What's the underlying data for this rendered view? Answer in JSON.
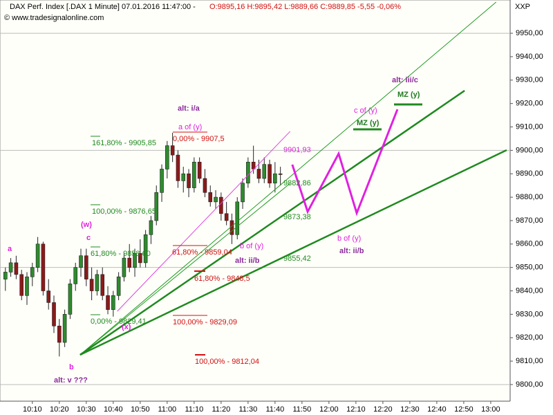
{
  "chart_data": {
    "type": "candlestick",
    "title": "DAX Perf. Index [.DAX  1 Minute] 07.01.2016 11:47:00 -",
    "quote": "O:9895,16 H:9895,42 L:9889,66 C:9889,85 -5,55 -0,06%",
    "source": "© www.tradesignalonline.com",
    "axis_label": "XXP",
    "up_color": "#2e8b2e",
    "down_color": "#8b1a1a",
    "xlim": [
      598,
      787.2
    ],
    "ylim": [
      9792.9,
      9964.2
    ],
    "xticks": [
      {
        "value": 610,
        "label": "10:10"
      },
      {
        "value": 620,
        "label": "10:20"
      },
      {
        "value": 630,
        "label": "10:30"
      },
      {
        "value": 640,
        "label": "10:40"
      },
      {
        "value": 650,
        "label": "10:50"
      },
      {
        "value": 660,
        "label": "11:00"
      },
      {
        "value": 670,
        "label": "11:10"
      },
      {
        "value": 680,
        "label": "11:20"
      },
      {
        "value": 690,
        "label": "11:30"
      },
      {
        "value": 700,
        "label": "11:40"
      },
      {
        "value": 710,
        "label": "11:50"
      },
      {
        "value": 720,
        "label": "12:00"
      },
      {
        "value": 730,
        "label": "12:10"
      },
      {
        "value": 740,
        "label": "12:20"
      },
      {
        "value": 750,
        "label": "12:30"
      },
      {
        "value": 760,
        "label": "12:40"
      },
      {
        "value": 770,
        "label": "12:50"
      },
      {
        "value": 780,
        "label": "13:00"
      }
    ],
    "yticks": [
      {
        "value": 9800,
        "label": "9800,00"
      },
      {
        "value": 9810,
        "label": "9810,00"
      },
      {
        "value": 9820,
        "label": "9820,00"
      },
      {
        "value": 9830,
        "label": "9830,00"
      },
      {
        "value": 9840,
        "label": "9840,00"
      },
      {
        "value": 9850,
        "label": "9850,00"
      },
      {
        "value": 9860,
        "label": "9860,00"
      },
      {
        "value": 9870,
        "label": "9870,00"
      },
      {
        "value": 9880,
        "label": "9880,00"
      },
      {
        "value": 9890,
        "label": "9890,00"
      },
      {
        "value": 9900,
        "label": "9900,00"
      },
      {
        "value": 9910,
        "label": "9910,00"
      },
      {
        "value": 9920,
        "label": "9920,00"
      },
      {
        "value": 9930,
        "label": "9930,00"
      },
      {
        "value": 9940,
        "label": "9940,00"
      },
      {
        "value": 9950,
        "label": "9950,00"
      }
    ],
    "candles": {
      "x": [
        600,
        602,
        604,
        606,
        608,
        610,
        612,
        614,
        616,
        618,
        620,
        622,
        624,
        626,
        628,
        630,
        632,
        634,
        636,
        638,
        640,
        642,
        644,
        646,
        648,
        650,
        652,
        654,
        656,
        658,
        660,
        662,
        664,
        666,
        668,
        670,
        672,
        674,
        676,
        678,
        680,
        682,
        684,
        686,
        688,
        690,
        692,
        694,
        696,
        698,
        700,
        702
      ],
      "open": [
        9845,
        9848,
        9852,
        9847,
        9838,
        9846,
        9850,
        9860,
        9840,
        9835,
        9825,
        9818,
        9830,
        9843,
        9850,
        9855,
        9845,
        9840,
        9847,
        9838,
        9832,
        9838,
        9846,
        9854,
        9850,
        9856,
        9852,
        9864,
        9870,
        9882,
        9892,
        9902,
        9898,
        9887,
        9890,
        9884,
        9895,
        9888,
        9882,
        9878,
        9880,
        9873,
        9870,
        9864,
        9878,
        9886,
        9895,
        9892,
        9888,
        9894,
        9886,
        9890
      ],
      "high": [
        9850,
        9854,
        9855,
        9849,
        9848,
        9852,
        9863,
        9861,
        9845,
        9838,
        9828,
        9832,
        9845,
        9852,
        9858,
        9858,
        9850,
        9849,
        9850,
        9842,
        9840,
        9848,
        9856,
        9860,
        9858,
        9862,
        9866,
        9872,
        9885,
        9894,
        9904,
        9907.5,
        9900,
        9893,
        9892,
        9897,
        9897,
        9892,
        9885,
        9883,
        9882,
        9878,
        9873,
        9880,
        9888,
        9897,
        9902,
        9896,
        9897,
        9896,
        9895,
        9893
      ],
      "low": [
        9840,
        9846,
        9845,
        9836,
        9834,
        9842,
        9848,
        9838,
        9832,
        9822,
        9812,
        9816,
        9828,
        9840,
        9846,
        9842,
        9836,
        9838,
        9836,
        9830,
        9829,
        9836,
        9844,
        9848,
        9846,
        9850,
        9850,
        9860,
        9868,
        9878,
        9888,
        9895,
        9884,
        9882,
        9880,
        9882,
        9886,
        9880,
        9876,
        9875,
        9870,
        9868,
        9860,
        9862,
        9875,
        9884,
        9890,
        9886,
        9886,
        9884,
        9882,
        9885
      ],
      "close": [
        9848,
        9852,
        9847,
        9838,
        9846,
        9850,
        9860,
        9840,
        9835,
        9825,
        9818,
        9830,
        9843,
        9850,
        9855,
        9845,
        9840,
        9847,
        9838,
        9832,
        9838,
        9846,
        9854,
        9850,
        9856,
        9852,
        9864,
        9870,
        9882,
        9892,
        9902,
        9898,
        9887,
        9890,
        9884,
        9895,
        9888,
        9882,
        9878,
        9880,
        9873,
        9870,
        9864,
        9878,
        9886,
        9895,
        9892,
        9888,
        9894,
        9886,
        9890,
        9889.66
      ]
    },
    "lines": [
      {
        "color": "#1f9a1f",
        "width": 1,
        "x": [
          627.7,
          782
        ],
        "y": [
          9812.7,
          9963.3
        ]
      },
      {
        "color": "#1f9a1f",
        "width": 1,
        "x": [
          627.7,
          705.6
        ],
        "y": [
          9812.7,
          9885.9
        ]
      },
      {
        "color": "#e040e0",
        "width": 1,
        "x": [
          641.5,
          705.6
        ],
        "y": [
          9831.3,
          9908.1
        ]
      },
      {
        "color": "#1f8a1f",
        "width": 2.5,
        "x": [
          627.7,
          770.3
        ],
        "y": [
          9812.7,
          9925.5
        ]
      },
      {
        "color": "#1f8a1f",
        "width": 2.5,
        "x": [
          627.7,
          785.9
        ],
        "y": [
          9812.7,
          9900.1
        ]
      },
      {
        "color": "#e020e0",
        "width": 3,
        "x": [
          706.4,
          712.1,
          723.6,
          730.3,
          745.4
        ],
        "y": [
          9893.9,
          9873.8,
          9898.6,
          9873.2,
          9917.5
        ]
      }
    ],
    "annotations": [
      {
        "text": "161,80% - 9905,85",
        "color": "#1f8a1f"
      },
      {
        "text": "100,00% - 9876,65",
        "color": "#1f8a1f"
      },
      {
        "text": "61,80% - 9858,60",
        "color": "#1f8a1f"
      },
      {
        "text": "0,00% - 9829,41",
        "color": "#1f8a1f"
      },
      {
        "text": "a of (y)",
        "color": "#e020e0"
      },
      {
        "text": "0,00% - 9907,5",
        "color": "#d01010"
      },
      {
        "text": "61,80% - 9859,04",
        "color": "#d01010"
      },
      {
        "text": "61,80% - 9848,5",
        "color": "#d01010"
      },
      {
        "text": "100,00% - 9829,09",
        "color": "#d01010"
      },
      {
        "text": "100,00% - 9812,04",
        "color": "#d01010"
      },
      {
        "text": "9901,93",
        "color": "#e020e0"
      },
      {
        "text": "9882,86",
        "color": "#1f8a1f"
      },
      {
        "text": "9873,38",
        "color": "#1f8a1f"
      },
      {
        "text": "9855,42",
        "color": "#1f8a1f"
      },
      {
        "text": "b of (y)",
        "color": "#e020e0"
      },
      {
        "text": "alt: ii/b",
        "color": "#8a2a9a"
      },
      {
        "text": "alt: i/a",
        "color": "#8a2a9a"
      },
      {
        "text": "alt: iii/c",
        "color": "#8a2a9a"
      },
      {
        "text": "MZ (y)",
        "color": "#1f7a1f"
      },
      {
        "text": "MZ (y)",
        "color": "#1f7a1f"
      },
      {
        "text": "c of (y)",
        "color": "#e020e0"
      },
      {
        "text": "b of (y)",
        "color": "#e020e0"
      },
      {
        "text": "alt: ii/b",
        "color": "#8a2a9a"
      },
      {
        "text": "alt: v ???",
        "color": "#8a2a9a"
      },
      {
        "text": "a",
        "color": "#e020e0"
      },
      {
        "text": "b",
        "color": "#e020e0"
      },
      {
        "text": "(w)",
        "color": "#e020e0"
      },
      {
        "text": "c",
        "color": "#e020e0"
      },
      {
        "text": "(x)",
        "color": "#e020e0"
      }
    ]
  }
}
